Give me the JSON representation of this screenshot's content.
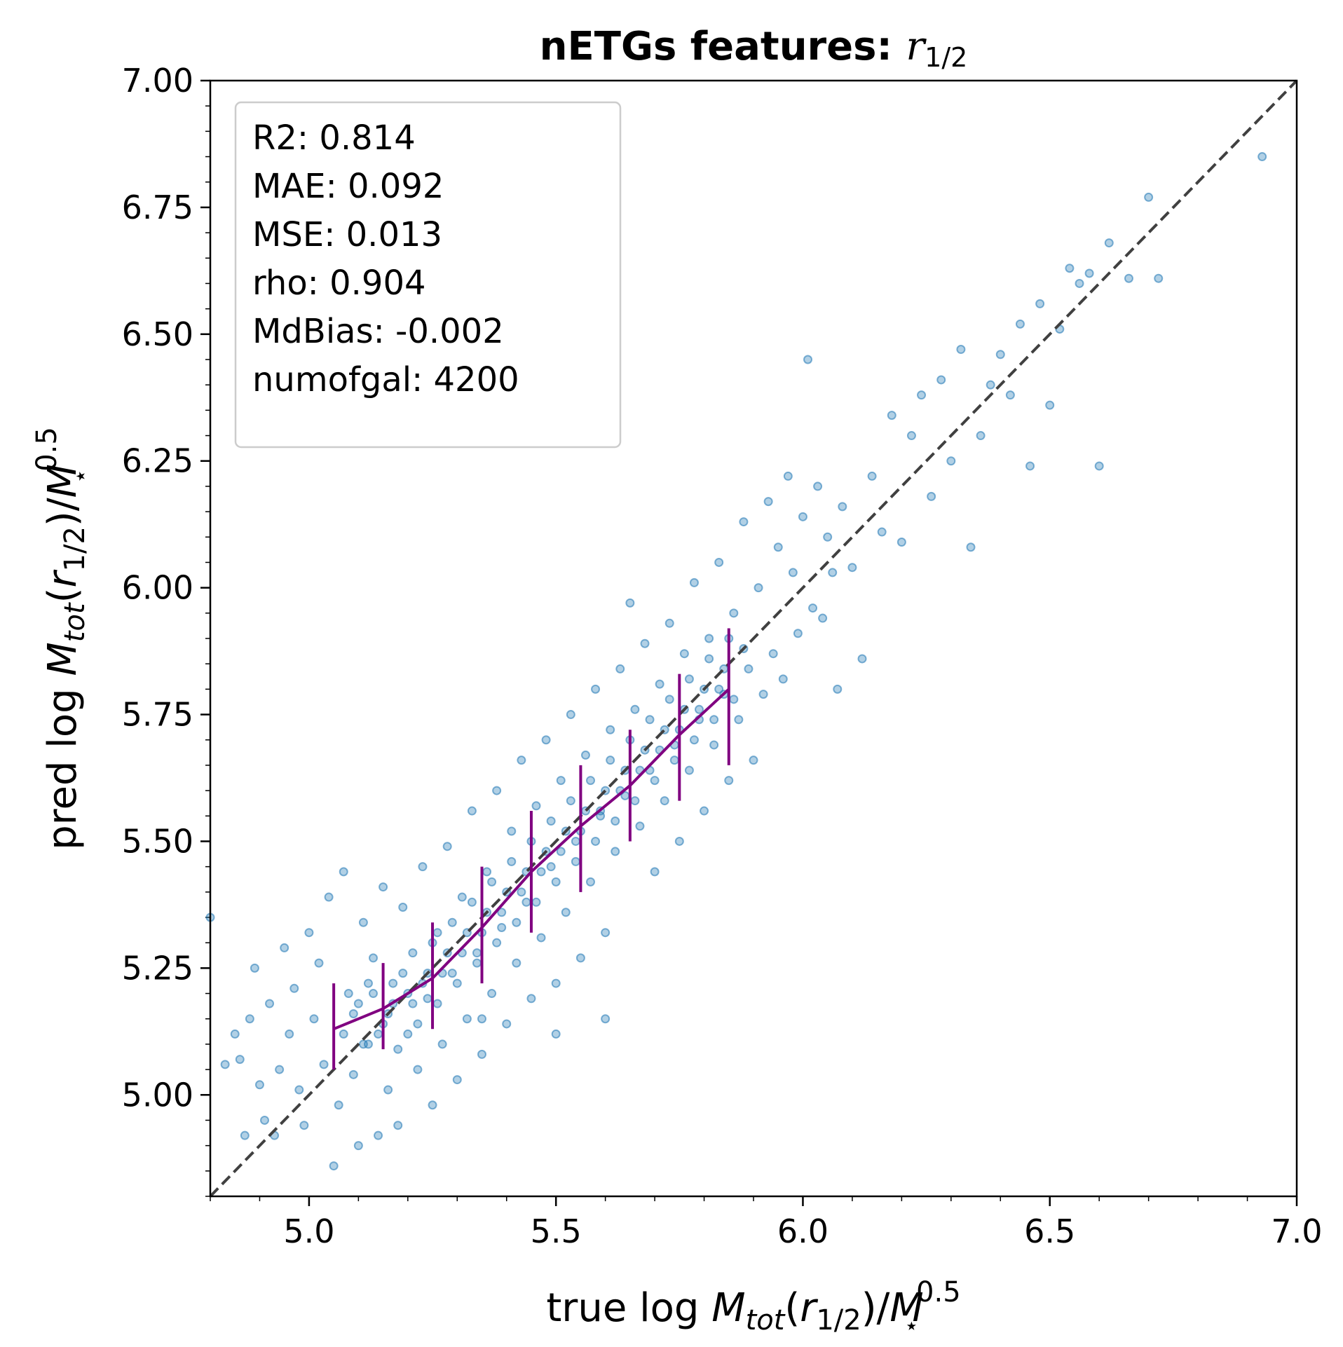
{
  "chart_data": {
    "type": "scatter",
    "title": {
      "bold": "nETGs features: ",
      "math_base": "r",
      "math_sub": "1/2"
    },
    "xlabel": {
      "prefix": "true log ",
      "m": "M",
      "tot": "tot",
      "open": "(",
      "r": "r",
      "half": "1/2",
      "close": ")/",
      "mstar": "M",
      "star": "⋆",
      "exp": "0.5"
    },
    "ylabel": {
      "prefix": "pred log ",
      "m": "M",
      "tot": "tot",
      "open": "(",
      "r": "r",
      "half": "1/2",
      "close": ")/",
      "mstar": "M",
      "star": "⋆",
      "exp": "0.5"
    },
    "xlim": [
      4.8,
      7.0
    ],
    "ylim": [
      4.8,
      7.0
    ],
    "xticks": [
      "5.0",
      "5.5",
      "6.0",
      "6.5",
      "7.0"
    ],
    "yticks": [
      "5.00",
      "5.25",
      "5.50",
      "5.75",
      "6.00",
      "6.25",
      "6.50",
      "6.75",
      "7.00"
    ],
    "grid": false,
    "legend_placement": "top-left",
    "stats": [
      "R2:  0.814",
      "MAE:  0.092",
      "MSE:  0.013",
      "rho:  0.904",
      "MdBias: -0.002",
      "numofgal: 4200"
    ],
    "colors": {
      "points": "#1f77b4",
      "binned_median": "#800080",
      "one_to_one": "#404040"
    },
    "one_to_one_line": [
      [
        4.8,
        4.8
      ],
      [
        7.0,
        7.0
      ]
    ],
    "series": [
      {
        "type": "scatter",
        "points": [
          [
            4.8,
            5.35
          ],
          [
            4.83,
            5.06
          ],
          [
            4.85,
            5.12
          ],
          [
            4.86,
            5.07
          ],
          [
            4.87,
            4.92
          ],
          [
            4.88,
            5.15
          ],
          [
            4.89,
            5.25
          ],
          [
            4.9,
            5.02
          ],
          [
            4.91,
            4.95
          ],
          [
            4.92,
            5.18
          ],
          [
            4.93,
            4.92
          ],
          [
            4.94,
            5.05
          ],
          [
            4.95,
            5.29
          ],
          [
            4.96,
            5.12
          ],
          [
            4.97,
            5.21
          ],
          [
            4.98,
            5.01
          ],
          [
            4.99,
            4.94
          ],
          [
            5.0,
            5.32
          ],
          [
            5.01,
            5.15
          ],
          [
            5.02,
            5.26
          ],
          [
            5.03,
            5.06
          ],
          [
            5.04,
            5.39
          ],
          [
            5.05,
            4.86
          ],
          [
            5.06,
            4.98
          ],
          [
            5.07,
            5.44
          ],
          [
            5.08,
            5.2
          ],
          [
            5.09,
            5.04
          ],
          [
            5.1,
            4.9
          ],
          [
            5.11,
            5.34
          ],
          [
            5.12,
            5.1
          ],
          [
            5.13,
            5.27
          ],
          [
            5.14,
            4.92
          ],
          [
            5.15,
            5.41
          ],
          [
            5.16,
            5.01
          ],
          [
            5.17,
            5.22
          ],
          [
            5.18,
            4.94
          ],
          [
            5.19,
            5.37
          ],
          [
            5.2,
            5.12
          ],
          [
            5.21,
            5.28
          ],
          [
            5.22,
            5.05
          ],
          [
            5.23,
            5.45
          ],
          [
            5.24,
            5.19
          ],
          [
            5.25,
            4.98
          ],
          [
            5.26,
            5.32
          ],
          [
            5.27,
            5.1
          ],
          [
            5.28,
            5.49
          ],
          [
            5.29,
            5.24
          ],
          [
            5.3,
            5.03
          ],
          [
            5.31,
            5.39
          ],
          [
            5.32,
            5.15
          ],
          [
            5.33,
            5.56
          ],
          [
            5.34,
            5.28
          ],
          [
            5.35,
            5.08
          ],
          [
            5.36,
            5.44
          ],
          [
            5.37,
            5.2
          ],
          [
            5.38,
            5.6
          ],
          [
            5.39,
            5.33
          ],
          [
            5.4,
            5.14
          ],
          [
            5.41,
            5.52
          ],
          [
            5.42,
            5.26
          ],
          [
            5.43,
            5.66
          ],
          [
            5.44,
            5.38
          ],
          [
            5.45,
            5.19
          ],
          [
            5.46,
            5.57
          ],
          [
            5.47,
            5.31
          ],
          [
            5.48,
            5.7
          ],
          [
            5.49,
            5.45
          ],
          [
            5.5,
            5.22
          ],
          [
            5.51,
            5.62
          ],
          [
            5.52,
            5.36
          ],
          [
            5.53,
            5.75
          ],
          [
            5.54,
            5.5
          ],
          [
            5.55,
            5.27
          ],
          [
            5.56,
            5.67
          ],
          [
            5.57,
            5.42
          ],
          [
            5.58,
            5.8
          ],
          [
            5.59,
            5.55
          ],
          [
            5.6,
            5.32
          ],
          [
            5.61,
            5.72
          ],
          [
            5.62,
            5.48
          ],
          [
            5.63,
            5.84
          ],
          [
            5.64,
            5.59
          ],
          [
            5.65,
            5.97
          ],
          [
            5.66,
            5.76
          ],
          [
            5.67,
            5.53
          ],
          [
            5.68,
            5.89
          ],
          [
            5.69,
            5.64
          ],
          [
            5.7,
            5.44
          ],
          [
            5.71,
            5.81
          ],
          [
            5.72,
            5.58
          ],
          [
            5.73,
            5.93
          ],
          [
            5.74,
            5.69
          ],
          [
            5.75,
            5.5
          ],
          [
            5.76,
            5.87
          ],
          [
            5.77,
            5.64
          ],
          [
            5.78,
            6.01
          ],
          [
            5.79,
            5.74
          ],
          [
            5.8,
            5.56
          ],
          [
            5.81,
            5.9
          ],
          [
            5.82,
            5.69
          ],
          [
            5.83,
            6.05
          ],
          [
            5.84,
            5.79
          ],
          [
            5.85,
            5.62
          ],
          [
            5.86,
            5.95
          ],
          [
            5.87,
            5.74
          ],
          [
            5.88,
            6.13
          ],
          [
            5.89,
            5.84
          ],
          [
            5.9,
            5.66
          ],
          [
            5.91,
            6.0
          ],
          [
            5.92,
            5.79
          ],
          [
            5.93,
            6.17
          ],
          [
            5.94,
            5.87
          ],
          [
            5.95,
            6.08
          ],
          [
            5.96,
            5.82
          ],
          [
            5.97,
            6.22
          ],
          [
            5.98,
            6.03
          ],
          [
            5.99,
            5.91
          ],
          [
            6.0,
            6.14
          ],
          [
            6.01,
            6.45
          ],
          [
            6.02,
            5.96
          ],
          [
            6.03,
            6.2
          ],
          [
            6.04,
            5.94
          ],
          [
            6.05,
            6.1
          ],
          [
            6.06,
            6.03
          ],
          [
            6.07,
            5.8
          ],
          [
            6.08,
            6.16
          ],
          [
            6.1,
            6.04
          ],
          [
            6.12,
            5.86
          ],
          [
            6.14,
            6.22
          ],
          [
            6.16,
            6.11
          ],
          [
            6.18,
            6.34
          ],
          [
            6.2,
            6.09
          ],
          [
            6.22,
            6.3
          ],
          [
            6.24,
            6.38
          ],
          [
            6.26,
            6.18
          ],
          [
            6.28,
            6.41
          ],
          [
            6.3,
            6.25
          ],
          [
            6.32,
            6.47
          ],
          [
            6.34,
            6.08
          ],
          [
            6.36,
            6.3
          ],
          [
            6.38,
            6.4
          ],
          [
            6.4,
            6.46
          ],
          [
            6.42,
            6.38
          ],
          [
            6.44,
            6.52
          ],
          [
            6.46,
            6.24
          ],
          [
            6.48,
            6.56
          ],
          [
            6.5,
            6.36
          ],
          [
            6.52,
            6.51
          ],
          [
            6.54,
            6.63
          ],
          [
            6.56,
            6.6
          ],
          [
            6.58,
            6.62
          ],
          [
            6.6,
            6.24
          ],
          [
            6.62,
            6.68
          ],
          [
            6.66,
            6.61
          ],
          [
            6.7,
            6.77
          ],
          [
            6.72,
            6.61
          ],
          [
            6.93,
            6.85
          ],
          [
            5.35,
            5.15
          ],
          [
            5.5,
            5.12
          ],
          [
            5.6,
            5.15
          ],
          [
            5.1,
            5.18
          ],
          [
            5.12,
            5.22
          ],
          [
            5.14,
            5.12
          ],
          [
            5.16,
            5.16
          ],
          [
            5.18,
            5.09
          ],
          [
            5.2,
            5.2
          ],
          [
            5.22,
            5.14
          ],
          [
            5.24,
            5.24
          ],
          [
            5.26,
            5.18
          ],
          [
            5.28,
            5.28
          ],
          [
            5.3,
            5.22
          ],
          [
            5.32,
            5.32
          ],
          [
            5.34,
            5.26
          ],
          [
            5.36,
            5.36
          ],
          [
            5.38,
            5.3
          ],
          [
            5.4,
            5.4
          ],
          [
            5.42,
            5.34
          ],
          [
            5.44,
            5.44
          ],
          [
            5.46,
            5.38
          ],
          [
            5.48,
            5.48
          ],
          [
            5.5,
            5.42
          ],
          [
            5.52,
            5.52
          ],
          [
            5.54,
            5.46
          ],
          [
            5.56,
            5.56
          ],
          [
            5.58,
            5.5
          ],
          [
            5.6,
            5.6
          ],
          [
            5.62,
            5.54
          ],
          [
            5.64,
            5.64
          ],
          [
            5.66,
            5.58
          ],
          [
            5.68,
            5.68
          ],
          [
            5.7,
            5.62
          ],
          [
            5.72,
            5.72
          ],
          [
            5.74,
            5.66
          ],
          [
            5.76,
            5.76
          ],
          [
            5.78,
            5.7
          ],
          [
            5.8,
            5.8
          ],
          [
            5.82,
            5.74
          ],
          [
            5.84,
            5.84
          ],
          [
            5.86,
            5.78
          ],
          [
            5.88,
            5.88
          ],
          [
            5.07,
            5.12
          ],
          [
            5.09,
            5.16
          ],
          [
            5.11,
            5.1
          ],
          [
            5.13,
            5.2
          ],
          [
            5.15,
            5.14
          ],
          [
            5.17,
            5.18
          ],
          [
            5.19,
            5.24
          ],
          [
            5.21,
            5.18
          ],
          [
            5.23,
            5.22
          ],
          [
            5.25,
            5.3
          ],
          [
            5.27,
            5.24
          ],
          [
            5.29,
            5.34
          ],
          [
            5.31,
            5.28
          ],
          [
            5.33,
            5.38
          ],
          [
            5.35,
            5.32
          ],
          [
            5.37,
            5.42
          ],
          [
            5.39,
            5.36
          ],
          [
            5.41,
            5.46
          ],
          [
            5.43,
            5.4
          ],
          [
            5.45,
            5.5
          ],
          [
            5.47,
            5.44
          ],
          [
            5.49,
            5.54
          ],
          [
            5.51,
            5.48
          ],
          [
            5.53,
            5.58
          ],
          [
            5.55,
            5.52
          ],
          [
            5.57,
            5.62
          ],
          [
            5.59,
            5.56
          ],
          [
            5.61,
            5.66
          ],
          [
            5.63,
            5.6
          ],
          [
            5.65,
            5.7
          ],
          [
            5.67,
            5.64
          ],
          [
            5.69,
            5.74
          ],
          [
            5.71,
            5.68
          ],
          [
            5.73,
            5.78
          ],
          [
            5.75,
            5.72
          ],
          [
            5.77,
            5.82
          ],
          [
            5.79,
            5.76
          ],
          [
            5.81,
            5.86
          ],
          [
            5.83,
            5.8
          ],
          [
            5.85,
            5.9
          ]
        ]
      },
      {
        "type": "errorbar",
        "x": [
          5.05,
          5.15,
          5.25,
          5.35,
          5.45,
          5.55,
          5.65,
          5.75,
          5.85
        ],
        "y": [
          5.13,
          5.17,
          5.23,
          5.33,
          5.44,
          5.53,
          5.61,
          5.71,
          5.8
        ],
        "yerr_low": [
          5.05,
          5.09,
          5.13,
          5.22,
          5.32,
          5.4,
          5.5,
          5.58,
          5.65
        ],
        "yerr_high": [
          5.22,
          5.26,
          5.34,
          5.45,
          5.56,
          5.65,
          5.72,
          5.83,
          5.92
        ]
      }
    ]
  }
}
